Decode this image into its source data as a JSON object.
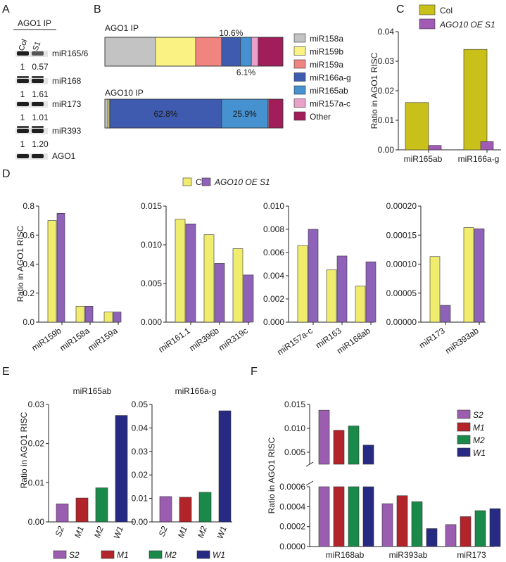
{
  "figure": {
    "panel_labels": [
      "A",
      "B",
      "C",
      "D",
      "E",
      "F"
    ]
  },
  "colors": {
    "col": "#F0EC6E",
    "col_dark": "#C9C11A",
    "oe": "#8E62B8",
    "oe_c": "#A25BB4",
    "S2": "#9B5DB0",
    "M1": "#B2232A",
    "M2": "#1A8A4A",
    "W1": "#262A82",
    "miR158a": "#C3C3C3",
    "miR159b": "#FAF282",
    "miR159a": "#F08580",
    "miR166a-g": "#3F5BAF",
    "miR165ab": "#4691D0",
    "miR157a-c": "#E9A1CA",
    "Other": "#A21E5B"
  },
  "panel_a": {
    "header": "AGO1 IP",
    "lanes": [
      "Col",
      "S1"
    ],
    "blots": [
      {
        "name": "miR165/6",
        "values": [
          "1",
          "0.57"
        ]
      },
      {
        "name": "miR168",
        "values": [
          "1",
          "1.61"
        ]
      },
      {
        "name": "miR173",
        "values": [
          "1",
          "1.01"
        ]
      },
      {
        "name": "miR393",
        "values": [
          "1",
          "1.20"
        ]
      },
      {
        "name": "AGO1",
        "values": []
      }
    ]
  },
  "panel_b": {
    "type": "stacked-bar",
    "bars": [
      {
        "label": "AGO1 IP",
        "segments": [
          {
            "name": "miR158a",
            "pct": 28.4
          },
          {
            "name": "miR159b",
            "pct": 22.6
          },
          {
            "name": "miR159a",
            "pct": 14.6
          },
          {
            "name": "miR166a-g",
            "pct": 10.6
          },
          {
            "name": "miR165ab",
            "pct": 6.1
          },
          {
            "name": "miR157a-c",
            "pct": 3.8
          },
          {
            "name": "Other",
            "pct": 13.9
          }
        ],
        "annotations": [
          "10.6%",
          "6.1%"
        ]
      },
      {
        "label": "AGO10 IP",
        "segments": [
          {
            "name": "miR158a",
            "pct": 1.3
          },
          {
            "name": "miR159b",
            "pct": 1.0
          },
          {
            "name": "miR159a",
            "pct": 0.5
          },
          {
            "name": "miR166a-g",
            "pct": 62.8
          },
          {
            "name": "miR165ab",
            "pct": 25.9
          },
          {
            "name": "miR157a-c",
            "pct": 0.5
          },
          {
            "name": "Other",
            "pct": 8.0
          }
        ],
        "annotations": [
          "62.8%",
          "25.9%"
        ]
      }
    ],
    "legend": [
      "miR158a",
      "miR159b",
      "miR159a",
      "miR166a-g",
      "miR165ab",
      "miR157a-c",
      "Other"
    ]
  },
  "chart_data": [
    {
      "panel": "C",
      "type": "bar",
      "categories": [
        "miR165ab",
        "miR166a-g"
      ],
      "series": [
        {
          "name": "Col",
          "values": [
            0.016,
            0.034
          ]
        },
        {
          "name": "AGO10 OE S1",
          "values": [
            0.0015,
            0.0028
          ]
        }
      ],
      "ylabel": "Ratio in AGO1 RISC",
      "ylim": [
        0,
        0.04
      ],
      "yticks": [
        "0.00",
        "0.01",
        "0.02",
        "0.03",
        "0.04"
      ]
    },
    {
      "panel": "D",
      "type": "bar",
      "legend": [
        "Col",
        "AGO10 OE S1"
      ],
      "ylabel": "Ratio in AGO1 RISC",
      "subplots": [
        {
          "categories": [
            "miR159b",
            "miR158a",
            "miR159a"
          ],
          "series": [
            {
              "name": "Col",
              "values": [
                0.7,
                0.11,
                0.07
              ]
            },
            {
              "name": "AGO10 OE S1",
              "values": [
                0.75,
                0.11,
                0.07
              ]
            }
          ],
          "ylim": [
            0,
            0.8
          ],
          "yticks": [
            "0.0",
            "0.2",
            "0.4",
            "0.6",
            "0.8"
          ]
        },
        {
          "categories": [
            "miR161.1",
            "miR396b",
            "miR319c"
          ],
          "series": [
            {
              "name": "Col",
              "values": [
                0.0133,
                0.0113,
                0.0095
              ]
            },
            {
              "name": "AGO10 OE S1",
              "values": [
                0.0127,
                0.0076,
                0.0061
              ]
            }
          ],
          "ylim": [
            0,
            0.015
          ],
          "yticks": [
            "0.000",
            "0.005",
            "0.010",
            "0.015"
          ]
        },
        {
          "categories": [
            "miR157a-c",
            "miR163",
            "miR168ab"
          ],
          "series": [
            {
              "name": "Col",
              "values": [
                0.0066,
                0.0045,
                0.0031
              ]
            },
            {
              "name": "AGO10 OE S1",
              "values": [
                0.008,
                0.0057,
                0.0052
              ]
            }
          ],
          "ylim": [
            0,
            0.01
          ],
          "yticks": [
            "0.000",
            "0.002",
            "0.004",
            "0.006",
            "0.008",
            "0.010"
          ]
        },
        {
          "categories": [
            "miR173",
            "miR393ab"
          ],
          "series": [
            {
              "name": "Col",
              "values": [
                0.000113,
                0.000163
              ]
            },
            {
              "name": "AGO10 OE S1",
              "values": [
                2.9e-05,
                0.000161
              ]
            }
          ],
          "ylim": [
            0,
            0.0002
          ],
          "yticks": [
            "0.00000",
            "0.00005",
            "0.00010",
            "0.00015",
            "0.00020"
          ]
        }
      ]
    },
    {
      "panel": "E",
      "type": "bar",
      "ylabel": "Ratio in AGO1 RISC",
      "legend": [
        "S2",
        "M1",
        "M2",
        "W1"
      ],
      "subplots": [
        {
          "title": "miR165ab",
          "categories": [
            "S2",
            "M1",
            "M2",
            "W1"
          ],
          "values": [
            0.0046,
            0.0061,
            0.0087,
            0.0272
          ],
          "ylim": [
            0,
            0.03
          ],
          "yticks": [
            "0.00",
            "0.01",
            "0.02",
            "0.03"
          ]
        },
        {
          "title": "miR166a-g",
          "categories": [
            "S2",
            "M1",
            "M2",
            "W1"
          ],
          "values": [
            0.0108,
            0.0105,
            0.0126,
            0.0473
          ],
          "ylim": [
            0,
            0.05
          ],
          "yticks": [
            "0.00",
            "0.01",
            "0.02",
            "0.03",
            "0.04",
            "0.05"
          ]
        }
      ]
    },
    {
      "panel": "F",
      "type": "bar",
      "ylabel": "Ratio in AGO1 RISC",
      "categories": [
        "miR168ab",
        "miR393ab",
        "miR173"
      ],
      "series": [
        {
          "name": "S2",
          "values": [
            0.0138,
            0.00043,
            0.00022
          ]
        },
        {
          "name": "M1",
          "values": [
            0.0096,
            0.00051,
            0.0003
          ]
        },
        {
          "name": "M2",
          "values": [
            0.0105,
            0.00045,
            0.00036
          ]
        },
        {
          "name": "W1",
          "values": [
            0.0065,
            0.00018,
            0.00038
          ]
        }
      ],
      "axis_break": true,
      "upper_ylim": [
        0.0025,
        0.015
      ],
      "upper_yticks": [
        "0.005",
        "0.010",
        "0.015"
      ],
      "lower_ylim": [
        0,
        0.0006
      ],
      "lower_yticks": [
        "0.0000",
        "0.0002",
        "0.0004",
        "0.0006"
      ]
    }
  ]
}
